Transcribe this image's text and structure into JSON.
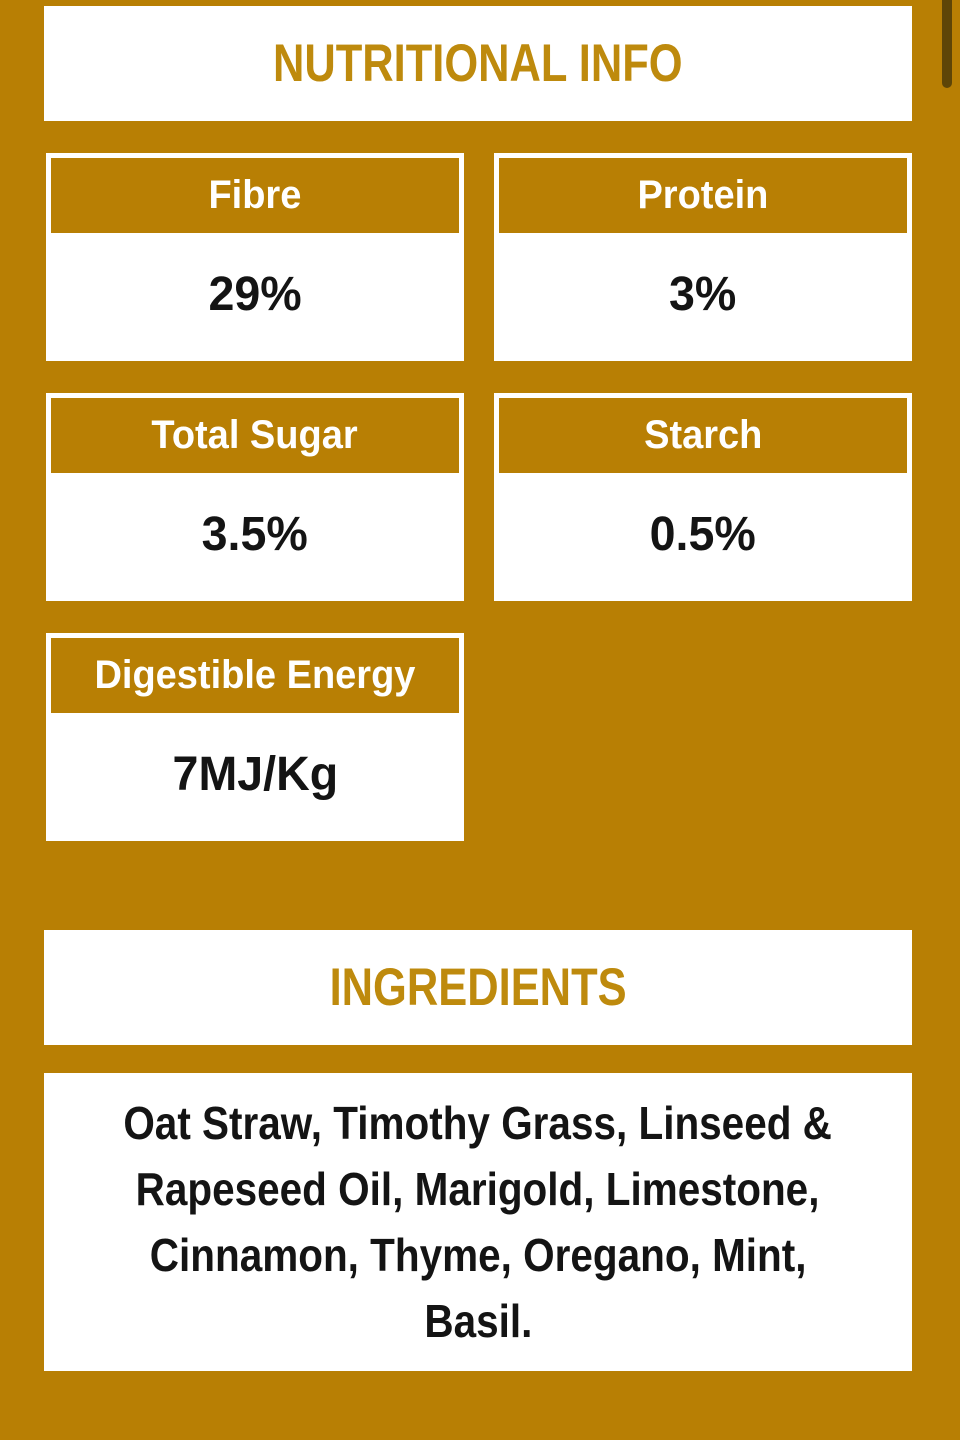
{
  "theme": {
    "page-bg": "#B87F04",
    "accent": "#B87F04",
    "accent-text": "#BE8A0D",
    "card-bg": "#FFFFFF",
    "label-text": "#FFFFFF",
    "value-text": "#141414",
    "scrollbar-thumb": "#5E4507"
  },
  "nutrition": {
    "title": "NUTRITIONAL INFO",
    "cards": [
      {
        "label": "Fibre",
        "value": "29%"
      },
      {
        "label": "Protein",
        "value": "3%"
      },
      {
        "label": "Total Sugar",
        "value": "3.5%"
      },
      {
        "label": "Starch",
        "value": "0.5%"
      },
      {
        "label": "Digestible Energy",
        "value": "7MJ/Kg"
      }
    ]
  },
  "ingredients": {
    "title": "INGREDIENTS",
    "full_text": "Oat Straw, Timothy Grass, Linseed & Rapeseed Oil, Marigold, Limestone, Cinnamon, Thyme, Oregano, Mint, Basil.",
    "lines": [
      "Oat Straw, Timothy Grass, Linseed &",
      "Rapeseed Oil, Marigold, Limestone,",
      "Cinnamon, Thyme, Oregano, Mint,",
      "Basil."
    ]
  }
}
